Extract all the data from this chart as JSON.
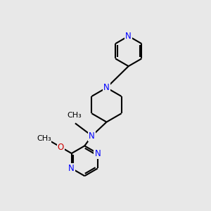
{
  "bg_color": "#e8e8e8",
  "bond_color": "#000000",
  "N_color": "#0000ff",
  "O_color": "#cc0000",
  "C_color": "#000000",
  "line_width": 1.5,
  "font_size": 8.5,
  "fig_size": [
    3.0,
    3.0
  ],
  "dpi": 100,
  "xlim": [
    0,
    10
  ],
  "ylim": [
    0,
    10
  ]
}
